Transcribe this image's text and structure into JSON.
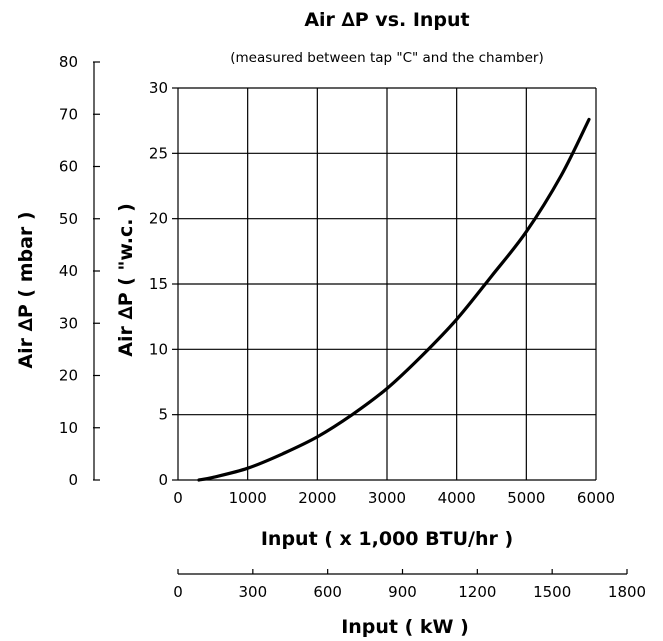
{
  "chart_data": {
    "type": "line",
    "title": "Air ∆P vs. Input",
    "subtitle": "(measured between tap \"C\" and the chamber)",
    "xlabel": "Input ( x 1,000 BTU/hr )",
    "ylabel": "Air ∆P ( \"w.c. )",
    "xlim": [
      0,
      6000
    ],
    "ylim": [
      0,
      30
    ],
    "x_ticks": [
      "0",
      "1000",
      "2000",
      "3000",
      "4000",
      "5000",
      "6000"
    ],
    "y_ticks": [
      "0",
      "5",
      "10",
      "15",
      "20",
      "25",
      "30"
    ],
    "grid": true,
    "series": [
      {
        "x": [
          300,
          500,
          1000,
          1500,
          2000,
          2500,
          3000,
          3500,
          4000,
          4500,
          5000,
          5500,
          5900
        ],
        "y": [
          0,
          0.2,
          0.9,
          2.0,
          3.3,
          5.0,
          7.0,
          9.5,
          12.3,
          15.6,
          19.0,
          23.3,
          27.6
        ]
      }
    ],
    "secondary_y": {
      "label": "Air ∆P ( mbar )",
      "lim": [
        0,
        80
      ],
      "ticks": [
        "0",
        "10",
        "20",
        "30",
        "40",
        "50",
        "60",
        "70",
        "80"
      ]
    },
    "secondary_x": {
      "label": "Input ( kW )",
      "lim": [
        0,
        1800
      ],
      "ticks": [
        "0",
        "300",
        "600",
        "900",
        "1200",
        "1500",
        "1800"
      ]
    }
  }
}
